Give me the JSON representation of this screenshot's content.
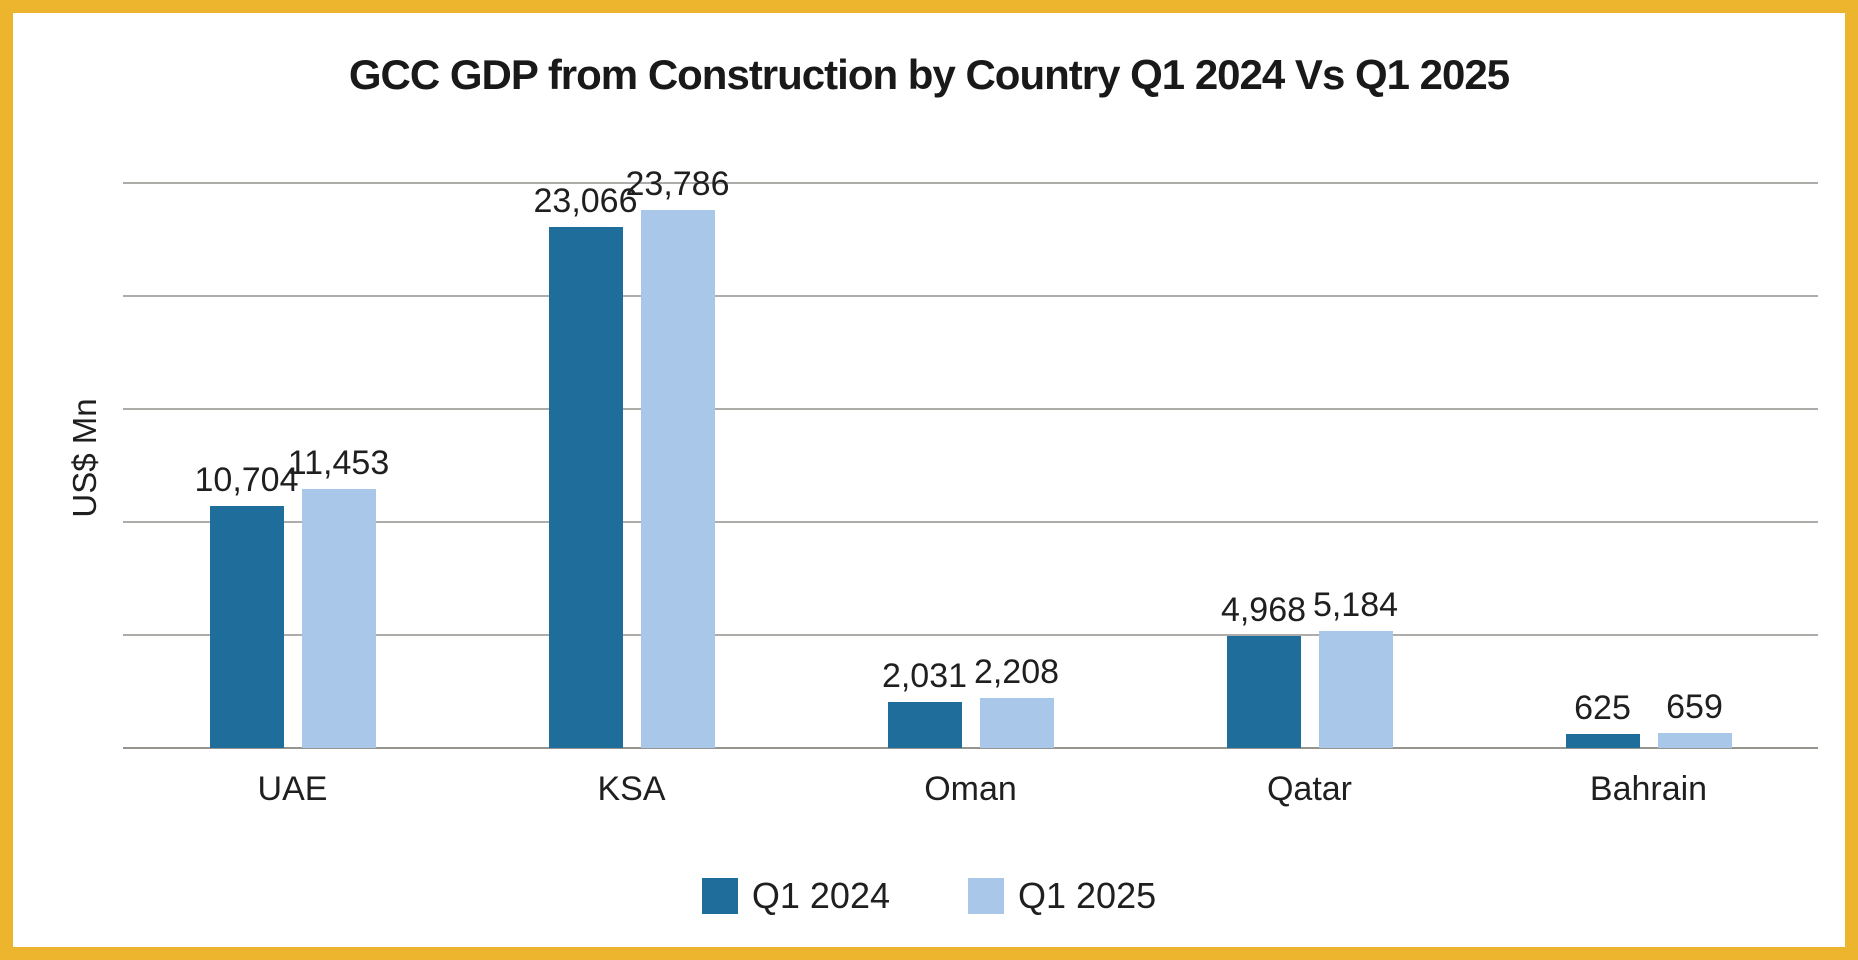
{
  "frame": {
    "border_color": "#EDB52D",
    "background_color": "#FFFFFF"
  },
  "chart_data": {
    "type": "bar",
    "title": "GCC GDP from Construction by Country Q1 2024 Vs Q1 2025",
    "categories": [
      "UAE",
      "KSA",
      "Oman",
      "Qatar",
      "Bahrain"
    ],
    "series": [
      {
        "name": "Q1 2024",
        "color": "#1E6D9B",
        "values": [
          10704,
          23066,
          2031,
          4968,
          625
        ],
        "labels": [
          "10,704",
          "23,066",
          "2,031",
          "4,968",
          "625"
        ]
      },
      {
        "name": "Q1 2025",
        "color": "#A9C8E9",
        "values": [
          11453,
          23786,
          2208,
          5184,
          659
        ],
        "labels": [
          "11,453",
          "23,786",
          "2,208",
          "5,184",
          "659"
        ]
      }
    ],
    "xlabel": "",
    "ylabel": "US$ Mn",
    "ylim": [
      0,
      25000
    ],
    "gridline_step": 5000,
    "grid": "horizontal",
    "y_tick_labels_visible": false,
    "legend_position": "bottom",
    "gridline_color": "#AEACA9",
    "axis_line_color": "#97948F",
    "text_color": "#1F1F1F"
  }
}
